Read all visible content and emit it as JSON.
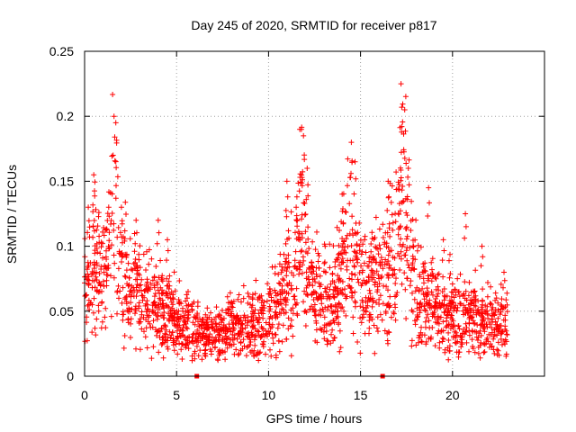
{
  "chart_data": {
    "type": "scatter",
    "title": "Day 245 of 2020, SRMTID for receiver p817",
    "xlabel": "GPS time / hours",
    "ylabel": "SRMTID / TECUs",
    "xlim": [
      0,
      25
    ],
    "ylim": [
      0,
      0.25
    ],
    "x_ticks": [
      {
        "value": 0,
        "label": "0"
      },
      {
        "value": 5,
        "label": "5"
      },
      {
        "value": 10,
        "label": "10"
      },
      {
        "value": 15,
        "label": "15"
      },
      {
        "value": 20,
        "label": "20"
      }
    ],
    "y_ticks": [
      {
        "value": 0,
        "label": "0"
      },
      {
        "value": 0.05,
        "label": "0.05"
      },
      {
        "value": 0.1,
        "label": "0.1"
      },
      {
        "value": 0.15,
        "label": "0.15"
      },
      {
        "value": 0.2,
        "label": "0.2"
      },
      {
        "value": 0.25,
        "label": "0.25"
      }
    ],
    "grid": true,
    "marker": "+",
    "color": "#ff0000",
    "baseline_markers_x": [
      6.1,
      16.2
    ],
    "series": [
      {
        "name": "SRMTID",
        "envelope_x": [
          0,
          0.5,
          1,
          1.3,
          1.6,
          1.8,
          2.0,
          2.5,
          3,
          3.5,
          4,
          4.5,
          5,
          5.5,
          6,
          6.5,
          7,
          7.5,
          8,
          8.5,
          9,
          9.5,
          10,
          10.5,
          11,
          11.5,
          11.8,
          12,
          12.5,
          13,
          13.5,
          14,
          14.3,
          14.6,
          15,
          15.5,
          16,
          16.5,
          17,
          17.3,
          17.6,
          18,
          18.5,
          19,
          19.5,
          20,
          20.5,
          21,
          21.5,
          22,
          22.5,
          23
        ],
        "envelope_y": [
          0.065,
          0.085,
          0.08,
          0.09,
          0.14,
          0.1,
          0.085,
          0.07,
          0.065,
          0.055,
          0.05,
          0.05,
          0.045,
          0.04,
          0.035,
          0.03,
          0.03,
          0.035,
          0.035,
          0.04,
          0.04,
          0.04,
          0.045,
          0.055,
          0.07,
          0.085,
          0.12,
          0.09,
          0.065,
          0.06,
          0.055,
          0.08,
          0.12,
          0.09,
          0.07,
          0.07,
          0.075,
          0.08,
          0.1,
          0.14,
          0.11,
          0.075,
          0.06,
          0.055,
          0.05,
          0.05,
          0.045,
          0.045,
          0.045,
          0.04,
          0.04,
          0.04
        ],
        "spike_x": [
          0.2,
          0.5,
          1.6,
          1.7,
          2.0,
          2.8,
          4.0,
          4.5,
          11.0,
          11.5,
          11.9,
          12.1,
          14.0,
          14.5,
          14.7,
          16.5,
          17.2,
          17.4,
          17.6,
          18.7,
          19.5,
          20.7,
          21.6,
          22.8
        ],
        "spike_y": [
          0.13,
          0.155,
          0.2,
          0.195,
          0.13,
          0.12,
          0.12,
          0.105,
          0.15,
          0.13,
          0.185,
          0.16,
          0.14,
          0.18,
          0.165,
          0.15,
          0.225,
          0.205,
          0.16,
          0.145,
          0.105,
          0.125,
          0.1,
          0.08
        ],
        "x_start": 0,
        "x_end": 23,
        "count": 2200
      }
    ]
  }
}
